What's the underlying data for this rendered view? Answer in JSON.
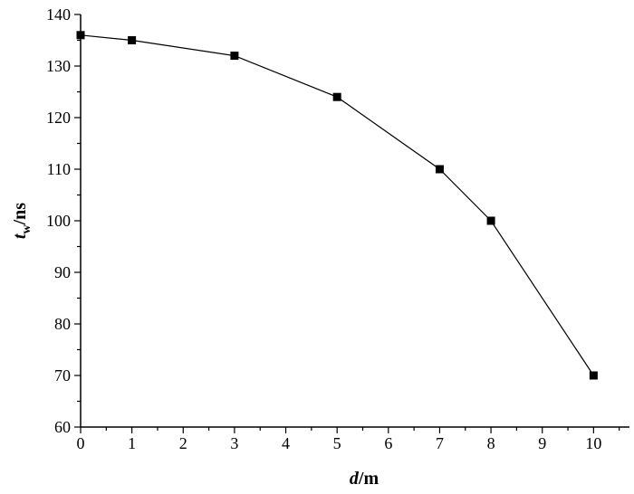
{
  "chart_data": {
    "type": "line",
    "x": [
      0,
      1,
      3,
      5,
      7,
      8,
      10
    ],
    "series": [
      {
        "values": [
          136,
          135,
          132,
          124,
          110,
          100,
          70
        ],
        "marker": "square"
      }
    ],
    "xlim": [
      0,
      10.7
    ],
    "ylim": [
      60,
      140
    ],
    "xticks": [
      "0",
      "1",
      "2",
      "3",
      "4",
      "5",
      "6",
      "7",
      "8",
      "9",
      "10"
    ],
    "yticks": [
      "60",
      "70",
      "80",
      "90",
      "100",
      "110",
      "120",
      "130",
      "140"
    ],
    "xlabel": {
      "main": "d",
      "unit": "/m"
    },
    "ylabel": {
      "main": "t",
      "sub": "w",
      "unit": "/ns"
    },
    "grid": false,
    "legend": "none",
    "colors": {
      "line": "#000000",
      "marker": "#000000",
      "axis": "#000000"
    }
  }
}
